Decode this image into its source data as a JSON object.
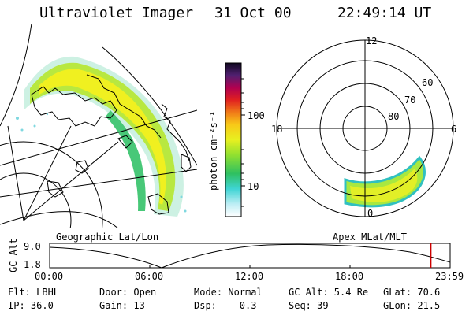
{
  "header": {
    "title": "Ultraviolet Imager",
    "date": "31 Oct 00",
    "time": "22:49:14 UT"
  },
  "colorbar": {
    "unit_label": "photon cm⁻²s⁻¹",
    "tick_100": "100",
    "tick_10": "10"
  },
  "polar": {
    "mlt_top": "12",
    "mlt_left": "18",
    "mlt_right": "6",
    "mlt_bottom": "0",
    "lat_60": "60",
    "lat_70": "70",
    "lat_80": "80"
  },
  "plot_labels": {
    "left": "Geographic Lat/Lon",
    "right": "Apex MLat/MLT"
  },
  "timeline": {
    "ylabel": "GC Alt",
    "y_top": "9.0",
    "y_bottom": "1.8",
    "ticks": [
      "00:00",
      "06:00",
      "12:00",
      "18:00",
      "23:59"
    ],
    "current_time_fraction": 0.952
  },
  "info": {
    "flt": "Flt: LBHL",
    "door": "Door: Open",
    "mode": "Mode: Normal",
    "gcalt": "GC Alt: 5.4 Re",
    "glat": "GLat: 70.6",
    "ip": "IP: 36.0",
    "gain": "Gain: 13",
    "dsp": "Dsp:    0.3",
    "seq": "Seq: 39",
    "glon": "GLon: 21.5"
  },
  "colors": {
    "marker": "#cc0000"
  }
}
